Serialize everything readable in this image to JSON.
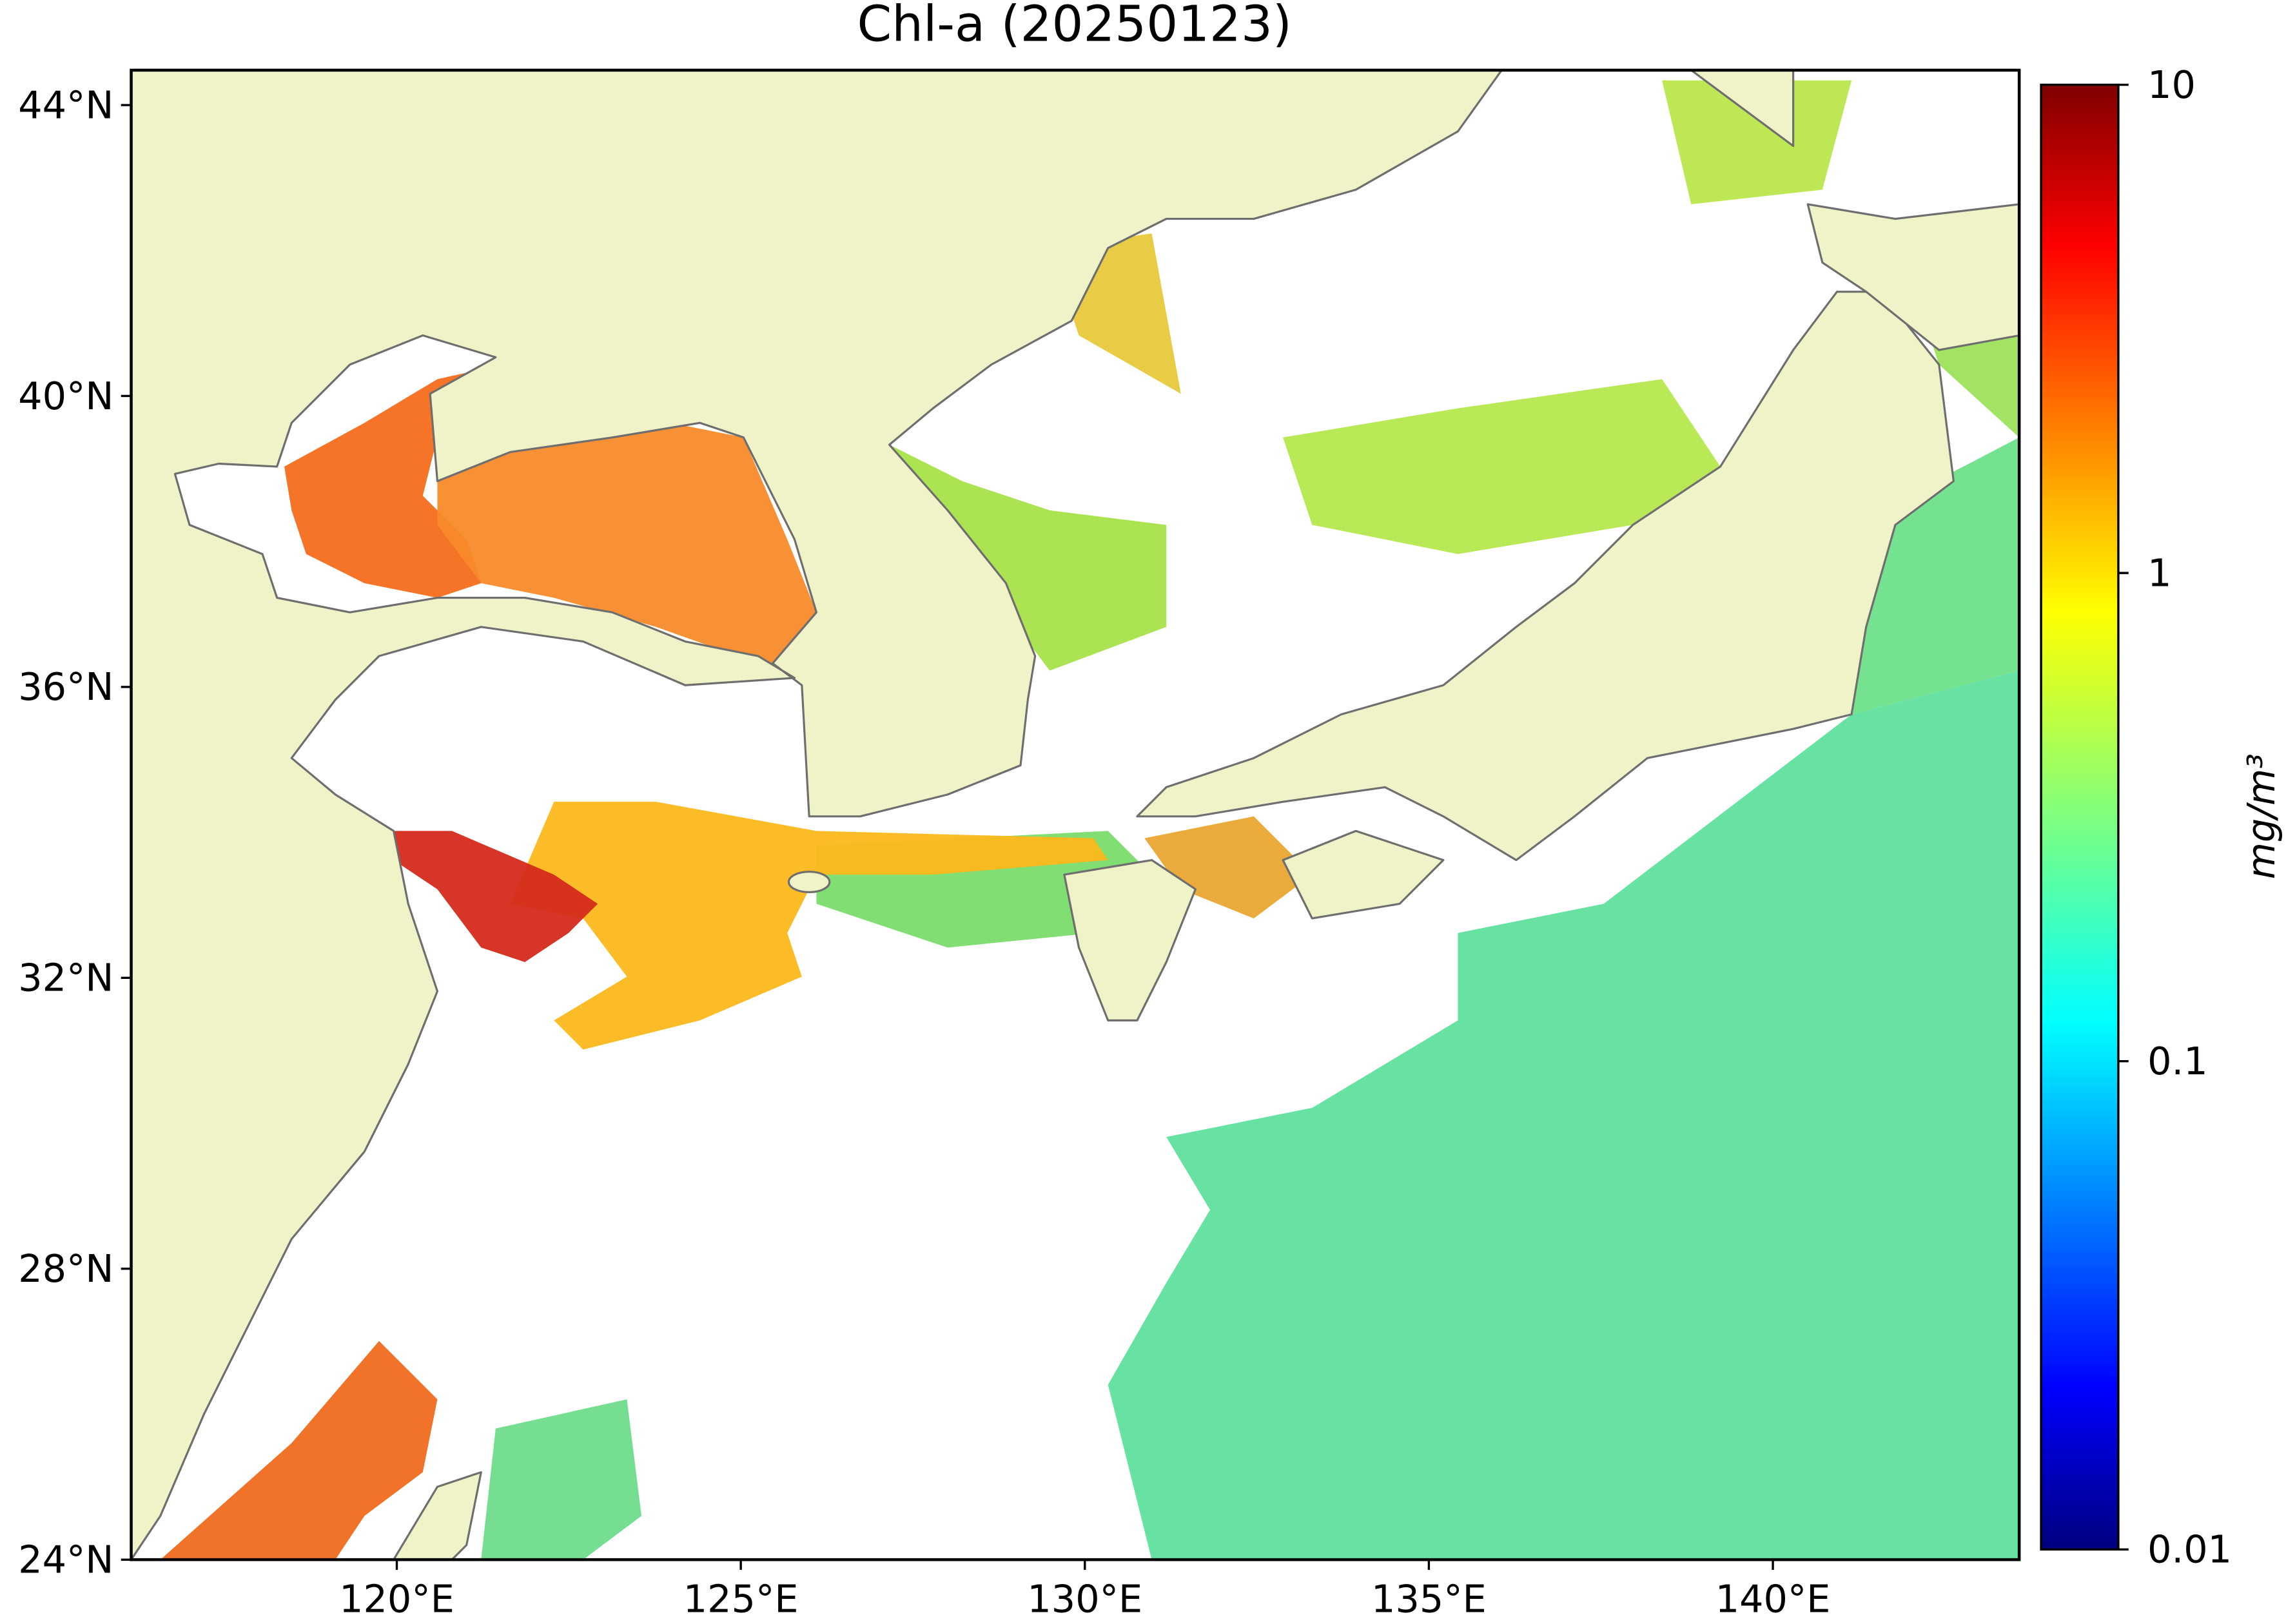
{
  "chart_data": {
    "type": "map",
    "title": "Chl-a (20250123)",
    "xlim": [
      116.14,
      143.58
    ],
    "ylim": [
      24,
      44.48
    ],
    "xticks": [
      {
        "value": 120,
        "label": "120°E"
      },
      {
        "value": 125,
        "label": "125°E"
      },
      {
        "value": 130,
        "label": "130°E"
      },
      {
        "value": 135,
        "label": "135°E"
      },
      {
        "value": 140,
        "label": "140°E"
      }
    ],
    "yticks": [
      {
        "value": 24,
        "label": "24°N"
      },
      {
        "value": 28,
        "label": "28°N"
      },
      {
        "value": 32,
        "label": "32°N"
      },
      {
        "value": 36,
        "label": "36°N"
      },
      {
        "value": 40,
        "label": "40°N"
      },
      {
        "value": 44,
        "label": "44°N"
      }
    ],
    "colorbar": {
      "label": "mg/m³",
      "clim": [
        0.01,
        10
      ],
      "log": true,
      "colormap": "jet",
      "ticks": [
        0.01,
        0.1,
        1,
        10
      ]
    }
  }
}
